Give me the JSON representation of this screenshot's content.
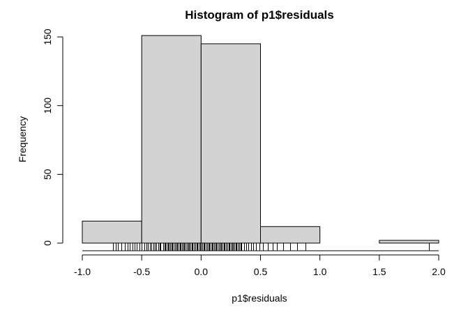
{
  "chart_data": {
    "type": "bar",
    "title": "Histogram of p1$residuals",
    "xlabel": "p1$residuals",
    "ylabel": "Frequency",
    "bins": [
      {
        "from": -1.0,
        "to": -0.5,
        "count": 16
      },
      {
        "from": -0.5,
        "to": 0.0,
        "count": 151
      },
      {
        "from": 0.0,
        "to": 0.5,
        "count": 145
      },
      {
        "from": 0.5,
        "to": 1.0,
        "count": 12
      },
      {
        "from": 1.0,
        "to": 1.5,
        "count": 0
      },
      {
        "from": 1.5,
        "to": 2.0,
        "count": 2
      }
    ],
    "xlim": [
      -1.0,
      2.0
    ],
    "ylim": [
      0,
      160
    ],
    "x_ticks": [
      "-1.0",
      "-0.5",
      "0.0",
      "0.5",
      "1.0",
      "1.5",
      "2.0"
    ],
    "y_ticks": [
      "0",
      "50",
      "100",
      "150"
    ],
    "rug": [
      -0.74,
      -0.72,
      -0.7,
      -0.67,
      -0.64,
      -0.62,
      -0.6,
      -0.58,
      -0.56,
      -0.54,
      -0.52,
      -0.5,
      -0.48,
      -0.46,
      -0.45,
      -0.43,
      -0.42,
      -0.4,
      -0.39,
      -0.38,
      -0.36,
      -0.35,
      -0.34,
      -0.32,
      -0.31,
      -0.3,
      -0.29,
      -0.28,
      -0.27,
      -0.26,
      -0.25,
      -0.24,
      -0.23,
      -0.22,
      -0.21,
      -0.2,
      -0.19,
      -0.18,
      -0.17,
      -0.16,
      -0.15,
      -0.14,
      -0.13,
      -0.12,
      -0.11,
      -0.1,
      -0.09,
      -0.08,
      -0.07,
      -0.06,
      -0.05,
      -0.04,
      -0.03,
      -0.02,
      -0.01,
      0.0,
      0.01,
      0.02,
      0.03,
      0.04,
      0.05,
      0.06,
      0.07,
      0.08,
      0.09,
      0.1,
      0.11,
      0.12,
      0.13,
      0.14,
      0.15,
      0.16,
      0.17,
      0.18,
      0.19,
      0.2,
      0.21,
      0.22,
      0.23,
      0.24,
      0.25,
      0.26,
      0.27,
      0.28,
      0.29,
      0.3,
      0.31,
      0.32,
      0.33,
      0.34,
      0.36,
      0.38,
      0.4,
      0.42,
      0.44,
      0.46,
      0.49,
      0.52,
      0.56,
      0.6,
      0.64,
      0.69,
      0.75,
      0.81,
      0.88,
      1.92
    ],
    "grid": false,
    "legend": "none"
  }
}
